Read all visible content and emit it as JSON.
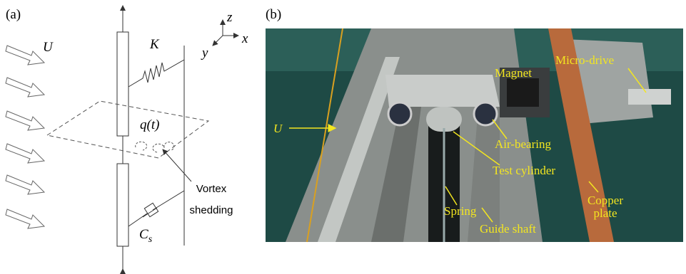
{
  "panel_a": {
    "label": "(a)",
    "flow": "U",
    "stiffness": "K",
    "axes": {
      "z": "z",
      "x": "x",
      "y": "y"
    },
    "force": "q(t)",
    "damping": {
      "main": "C",
      "sub": "s"
    },
    "vortex": [
      "Vortex",
      "shedding"
    ]
  },
  "panel_b": {
    "label": "(b)",
    "flow": "U",
    "labels": {
      "magnet": "Magnet",
      "micro_drive": "Micro-drive",
      "air_bearing": "Air-bearing",
      "test_cylinder": "Test cylinder",
      "spring": "Spring",
      "guide_shaft": "Guide shaft",
      "copper_plate": [
        "Copper",
        "plate"
      ]
    }
  }
}
